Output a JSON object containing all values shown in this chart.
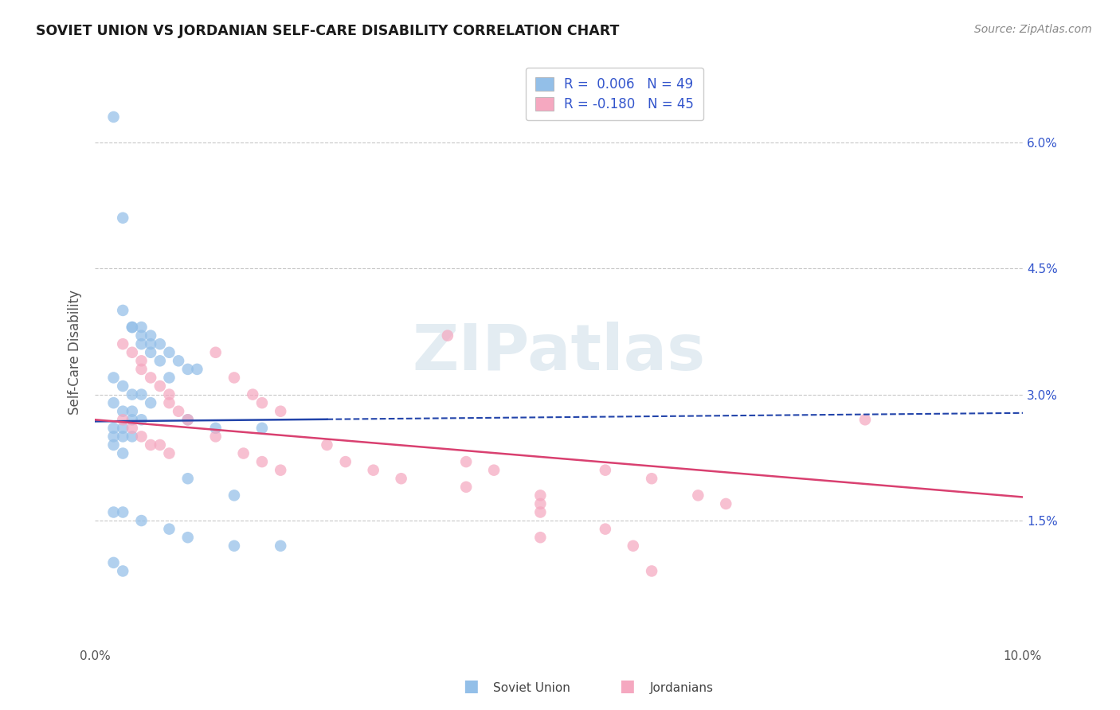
{
  "title": "SOVIET UNION VS JORDANIAN SELF-CARE DISABILITY CORRELATION CHART",
  "source": "Source: ZipAtlas.com",
  "ylabel": "Self-Care Disability",
  "xlim": [
    0.0,
    0.1
  ],
  "ylim": [
    0.0,
    0.07
  ],
  "yticks_right": [
    0.015,
    0.03,
    0.045,
    0.06
  ],
  "ytick_right_labels": [
    "1.5%",
    "3.0%",
    "4.5%",
    "6.0%"
  ],
  "grid_color": "#c8c8c8",
  "background_color": "#ffffff",
  "soviet_color": "#93bfe8",
  "jordan_color": "#f5a8c0",
  "trend_blue_color": "#2244aa",
  "trend_pink_color": "#d94070",
  "soviet_R": 0.006,
  "soviet_N": 49,
  "jordan_R": -0.18,
  "jordan_N": 45,
  "watermark": "ZIPatlas",
  "watermark_color": "#ccdde8",
  "legend_text_color": "#3355cc",
  "label_soviet": "Soviet Union",
  "label_jordan": "Jordanians",
  "soviet_x": [
    0.002,
    0.003,
    0.004,
    0.005,
    0.006,
    0.007,
    0.008,
    0.009,
    0.01,
    0.011,
    0.003,
    0.004,
    0.005,
    0.005,
    0.006,
    0.006,
    0.007,
    0.008,
    0.002,
    0.003,
    0.004,
    0.005,
    0.006,
    0.002,
    0.003,
    0.004,
    0.004,
    0.005,
    0.002,
    0.003,
    0.002,
    0.003,
    0.004,
    0.002,
    0.003,
    0.01,
    0.013,
    0.018,
    0.01,
    0.015,
    0.002,
    0.003,
    0.005,
    0.008,
    0.01,
    0.015,
    0.02,
    0.002,
    0.003
  ],
  "soviet_y": [
    0.063,
    0.051,
    0.038,
    0.038,
    0.037,
    0.036,
    0.035,
    0.034,
    0.033,
    0.033,
    0.04,
    0.038,
    0.037,
    0.036,
    0.036,
    0.035,
    0.034,
    0.032,
    0.032,
    0.031,
    0.03,
    0.03,
    0.029,
    0.029,
    0.028,
    0.028,
    0.027,
    0.027,
    0.026,
    0.026,
    0.025,
    0.025,
    0.025,
    0.024,
    0.023,
    0.027,
    0.026,
    0.026,
    0.02,
    0.018,
    0.016,
    0.016,
    0.015,
    0.014,
    0.013,
    0.012,
    0.012,
    0.01,
    0.009
  ],
  "jordan_x": [
    0.003,
    0.004,
    0.005,
    0.005,
    0.006,
    0.007,
    0.008,
    0.008,
    0.009,
    0.01,
    0.003,
    0.004,
    0.005,
    0.006,
    0.007,
    0.008,
    0.013,
    0.015,
    0.017,
    0.018,
    0.02,
    0.013,
    0.016,
    0.018,
    0.02,
    0.025,
    0.027,
    0.03,
    0.033,
    0.04,
    0.043,
    0.04,
    0.048,
    0.048,
    0.055,
    0.06,
    0.065,
    0.068,
    0.048,
    0.055,
    0.083,
    0.038,
    0.048,
    0.058,
    0.06
  ],
  "jordan_y": [
    0.036,
    0.035,
    0.034,
    0.033,
    0.032,
    0.031,
    0.03,
    0.029,
    0.028,
    0.027,
    0.027,
    0.026,
    0.025,
    0.024,
    0.024,
    0.023,
    0.035,
    0.032,
    0.03,
    0.029,
    0.028,
    0.025,
    0.023,
    0.022,
    0.021,
    0.024,
    0.022,
    0.021,
    0.02,
    0.022,
    0.021,
    0.019,
    0.018,
    0.017,
    0.021,
    0.02,
    0.018,
    0.017,
    0.016,
    0.014,
    0.027,
    0.037,
    0.013,
    0.012,
    0.009
  ],
  "blue_trend_x": [
    0.0,
    0.1
  ],
  "blue_trend_y": [
    0.0268,
    0.0278
  ],
  "pink_trend_x": [
    0.0,
    0.1
  ],
  "pink_trend_y": [
    0.027,
    0.0178
  ]
}
